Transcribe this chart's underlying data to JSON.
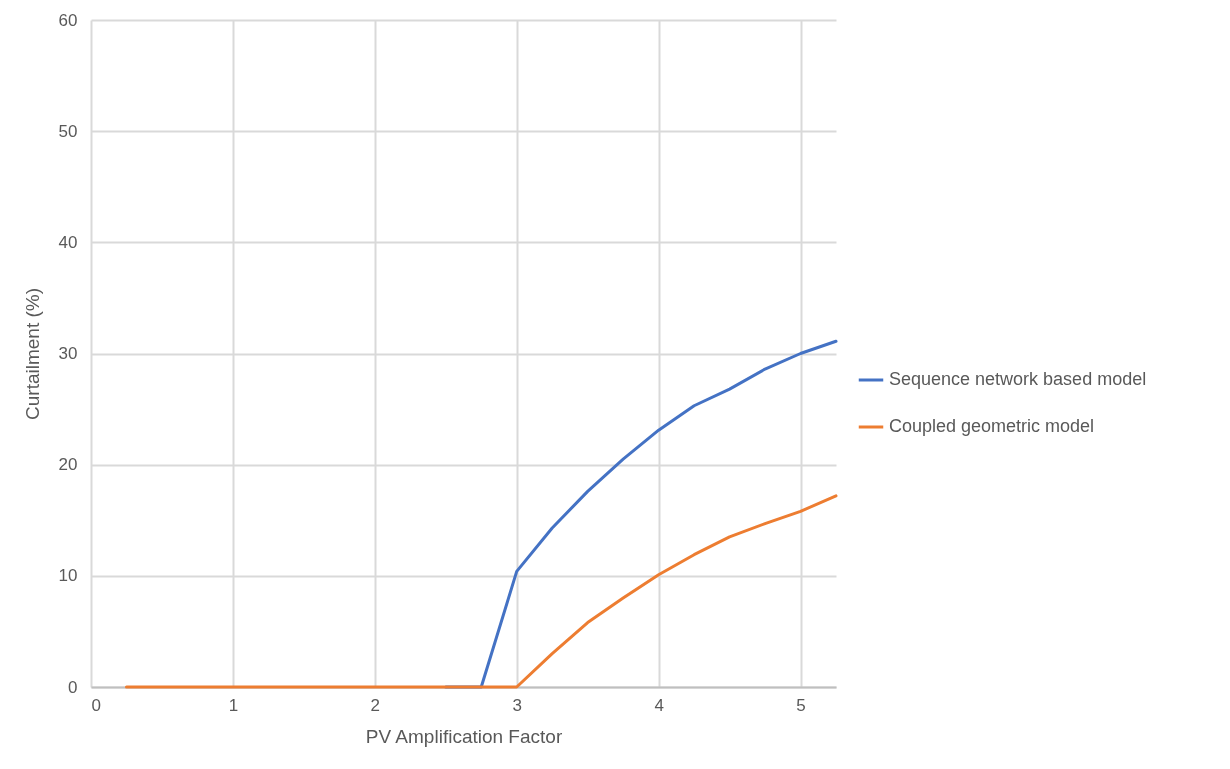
{
  "chart_data": {
    "type": "line",
    "xlabel": "PV Amplification Factor",
    "ylabel": "Curtailment (%)",
    "x": [
      0.25,
      0.5,
      0.75,
      1,
      1.25,
      1.5,
      1.75,
      2,
      2.25,
      2.5,
      2.75,
      3,
      3.25,
      3.5,
      3.75,
      4,
      4.25,
      4.5,
      4.75,
      5,
      5.25
    ],
    "series": [
      {
        "name": "Sequence network based model",
        "color": "#4472c4",
        "values": [
          null,
          null,
          null,
          null,
          null,
          null,
          null,
          null,
          null,
          0,
          0,
          10.4,
          14.3,
          17.6,
          20.5,
          23.1,
          25.3,
          26.8,
          28.6,
          30.0,
          31.1
        ]
      },
      {
        "name": "Coupled geometric model",
        "color": "#ed7d31",
        "values": [
          0,
          0,
          0,
          0,
          0,
          0,
          0,
          0,
          0,
          0,
          0,
          0,
          3.0,
          5.8,
          8.0,
          10.1,
          11.9,
          13.5,
          14.7,
          15.8,
          17.2
        ]
      }
    ],
    "xlim": [
      0,
      5.25
    ],
    "xticks": [
      0,
      1,
      2,
      3,
      4,
      5
    ],
    "ylim": [
      0,
      60
    ],
    "yticks": [
      0,
      10,
      20,
      30,
      40,
      50,
      60
    ],
    "grid": true,
    "legend": "right",
    "marker": "none",
    "line_style": "solid"
  }
}
